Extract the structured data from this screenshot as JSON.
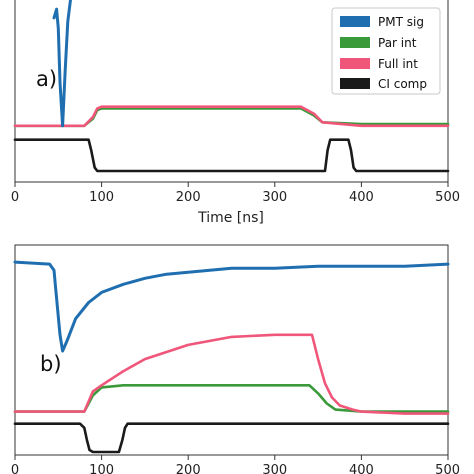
{
  "colors": {
    "pmt_sig": "#1f6fb0",
    "par_int": "#3a9a3a",
    "full_int": "#f0567a",
    "ci_comp": "#1a1a1a"
  },
  "chart_data": [
    {
      "type": "line",
      "panel_label": "a)",
      "xlabel": "Time [ns]",
      "xlim": [
        0,
        500
      ],
      "x_ticks": [
        "0",
        "100",
        "200",
        "300",
        "400",
        "500"
      ],
      "y_axis_values_shown": false,
      "legend": {
        "placement": "top-right",
        "entries": [
          "PMT sig",
          "Par int",
          "Full int",
          "CI comp"
        ]
      },
      "series": [
        {
          "name": "PMT sig",
          "color_key": "pmt_sig",
          "x": [
            45,
            48,
            50,
            52,
            55,
            58,
            61,
            64
          ],
          "y": [
            0.92,
            0.97,
            0.86,
            0.55,
            0.3,
            0.62,
            0.9,
            1.02
          ]
        },
        {
          "name": "Par int",
          "color_key": "par_int",
          "x": [
            0,
            80,
            90,
            95,
            100,
            150,
            200,
            250,
            300,
            330,
            345,
            355,
            400,
            450,
            500
          ],
          "y": [
            0.3,
            0.3,
            0.34,
            0.39,
            0.4,
            0.4,
            0.4,
            0.4,
            0.4,
            0.4,
            0.36,
            0.32,
            0.31,
            0.31,
            0.31
          ]
        },
        {
          "name": "Full int",
          "color_key": "full_int",
          "x": [
            0,
            80,
            90,
            95,
            100,
            150,
            200,
            250,
            300,
            330,
            345,
            355,
            400,
            450,
            500
          ],
          "y": [
            0.3,
            0.3,
            0.35,
            0.4,
            0.41,
            0.41,
            0.41,
            0.41,
            0.41,
            0.41,
            0.37,
            0.32,
            0.3,
            0.3,
            0.3
          ]
        },
        {
          "name": "CI comp",
          "color_key": "ci_comp",
          "x": [
            0,
            85,
            88,
            92,
            95,
            150,
            200,
            250,
            300,
            350,
            358,
            361,
            364,
            385,
            388,
            391,
            394,
            450,
            500
          ],
          "y": [
            0.22,
            0.22,
            0.16,
            0.06,
            0.04,
            0.04,
            0.04,
            0.04,
            0.04,
            0.04,
            0.04,
            0.16,
            0.22,
            0.22,
            0.16,
            0.06,
            0.04,
            0.04,
            0.04
          ]
        }
      ]
    },
    {
      "type": "line",
      "panel_label": "b)",
      "xlabel": "",
      "xlim": [
        0,
        500
      ],
      "x_ticks": [
        "0",
        "100",
        "200",
        "300",
        "400",
        "500"
      ],
      "y_axis_values_shown": false,
      "series": [
        {
          "name": "PMT sig",
          "color_key": "pmt_sig",
          "x": [
            0,
            40,
            45,
            48,
            52,
            55,
            60,
            70,
            85,
            100,
            125,
            150,
            175,
            200,
            250,
            300,
            350,
            400,
            450,
            500
          ],
          "y": [
            0.94,
            0.93,
            0.9,
            0.76,
            0.58,
            0.5,
            0.55,
            0.66,
            0.74,
            0.79,
            0.83,
            0.86,
            0.88,
            0.89,
            0.91,
            0.91,
            0.92,
            0.92,
            0.92,
            0.93
          ]
        },
        {
          "name": "Par int",
          "color_key": "par_int",
          "x": [
            0,
            80,
            90,
            100,
            125,
            150,
            200,
            250,
            300,
            340,
            350,
            360,
            370,
            400,
            450,
            500
          ],
          "y": [
            0.2,
            0.2,
            0.28,
            0.32,
            0.33,
            0.33,
            0.33,
            0.33,
            0.33,
            0.33,
            0.29,
            0.24,
            0.21,
            0.2,
            0.2,
            0.2
          ]
        },
        {
          "name": "Full int",
          "color_key": "full_int",
          "x": [
            0,
            80,
            90,
            100,
            125,
            150,
            200,
            250,
            300,
            343,
            350,
            358,
            366,
            375,
            390,
            400,
            450,
            500
          ],
          "y": [
            0.2,
            0.2,
            0.3,
            0.33,
            0.4,
            0.46,
            0.53,
            0.57,
            0.58,
            0.58,
            0.46,
            0.34,
            0.27,
            0.23,
            0.21,
            0.2,
            0.19,
            0.19
          ]
        },
        {
          "name": "CI comp",
          "color_key": "ci_comp",
          "x": [
            0,
            75,
            80,
            83,
            86,
            90,
            120,
            124,
            127,
            130,
            150,
            200,
            250,
            300,
            350,
            400,
            450,
            500
          ],
          "y": [
            0.14,
            0.14,
            0.12,
            0.06,
            0.01,
            0.0,
            0.0,
            0.06,
            0.12,
            0.14,
            0.14,
            0.14,
            0.14,
            0.14,
            0.14,
            0.14,
            0.14,
            0.14
          ]
        }
      ]
    }
  ]
}
